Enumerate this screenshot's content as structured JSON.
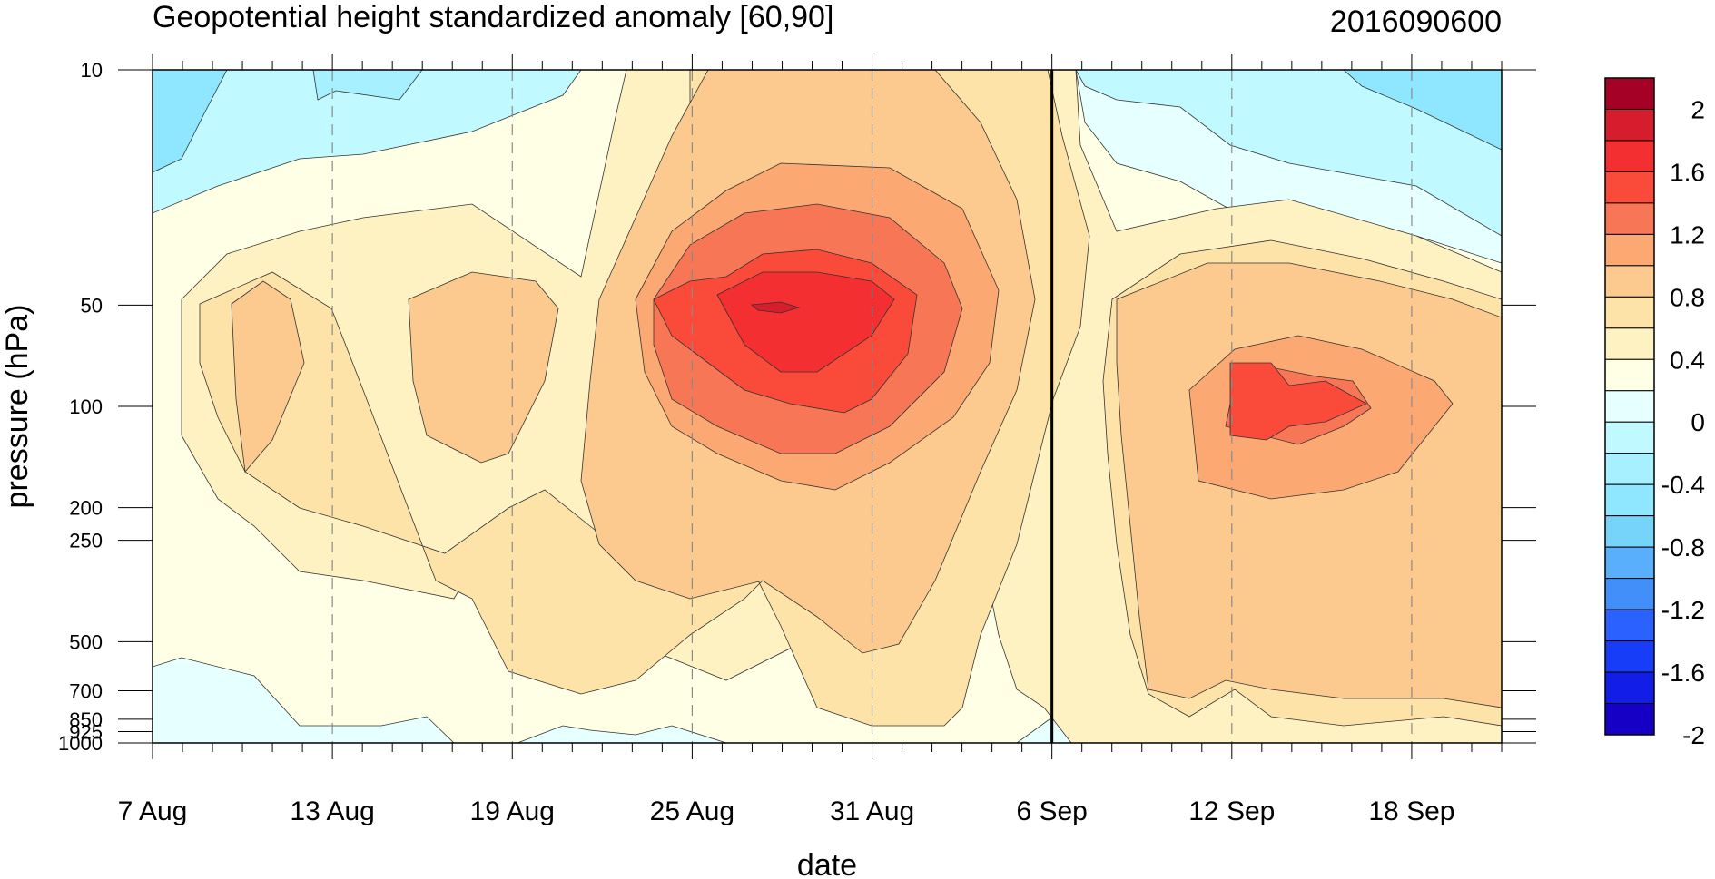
{
  "chart_data": {
    "type": "heatmap",
    "subtype": "filled-contour time-pressure cross-section",
    "title": "Geopotential height standardized anomaly [60,90]",
    "right_title": "2016090600",
    "xlabel": "date",
    "ylabel": "pressure (hPa)",
    "x_tick_labels": [
      "7 Aug",
      "13 Aug",
      "19 Aug",
      "25 Aug",
      "31 Aug",
      "6 Sep",
      "12 Sep",
      "18 Sep"
    ],
    "x_tick_days": [
      0,
      6,
      12,
      18,
      24,
      30,
      36,
      42
    ],
    "x_range_days": [
      0,
      45
    ],
    "y_tick_labels": [
      "10",
      "50",
      "100",
      "200",
      "250",
      "500",
      "700",
      "850",
      "925",
      "1000"
    ],
    "y_ticks": [
      10,
      50,
      100,
      200,
      250,
      500,
      700,
      850,
      925,
      1000
    ],
    "y_scale": "log, reversed",
    "y_range": [
      1000,
      10
    ],
    "current_date_marker": "6 Sep",
    "colorbar": {
      "labels": [
        "2",
        "1.6",
        "1.2",
        "0.8",
        "0.4",
        "0",
        "-0.4",
        "-0.8",
        "-1.2",
        "-1.6",
        "-2"
      ],
      "levels": [
        2,
        1.6,
        1.2,
        0.8,
        0.4,
        0,
        -0.4,
        -0.8,
        -1.2,
        -1.6,
        -2
      ],
      "interval": 0.2,
      "colors": [
        "#A50026",
        "#D51D2E",
        "#F42F32",
        "#FA4A3A",
        "#F77656",
        "#FCA873",
        "#FCC98E",
        "#FDE3A8",
        "#FFF2C2",
        "#FFFFE6",
        "#E6FFFF",
        "#C0F9FF",
        "#A6F0FF",
        "#8EE6FF",
        "#76D4FA",
        "#59AFFC",
        "#428FFA",
        "#2B62FF",
        "#183DF9",
        "#121DE8",
        "#1700C5"
      ]
    },
    "anomaly_regions": [
      {
        "label": "strong positive anomaly core",
        "date_center": "28 Aug",
        "pressure_hPa": 50,
        "value": 1.7
      },
      {
        "label": "secondary positive maximum",
        "date_center": "14 Sep",
        "pressure_hPa": 100,
        "value": 1.2
      },
      {
        "label": "weak positive lobe",
        "date_center": "11 Aug",
        "pressure_hPa": 50,
        "value": 0.6
      },
      {
        "label": "weak positive lobe",
        "date_center": "17 Aug",
        "pressure_hPa": 60,
        "value": 0.6
      },
      {
        "label": "negative anomaly upper left",
        "date_center": "8 Aug",
        "pressure_hPa": 15,
        "value": -0.8
      },
      {
        "label": "negative anomaly upper right",
        "date_center": "18 Sep",
        "pressure_hPa": 15,
        "value": -0.8
      },
      {
        "label": "negative anomaly near surface",
        "date_center": "10 Aug",
        "pressure_hPa": 850,
        "value": -0.3
      }
    ],
    "grid": "dashed vertical lines at labeled dates"
  }
}
